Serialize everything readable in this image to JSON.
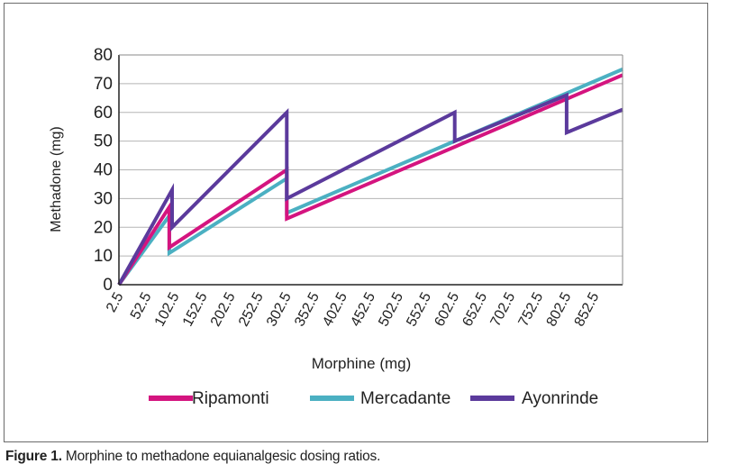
{
  "chart_data": {
    "type": "line",
    "title": "",
    "xlabel": "Morphine (mg)",
    "ylabel": "Methadone (mg)",
    "ylim": [
      0,
      80
    ],
    "yticks": [
      "0",
      "10",
      "20",
      "30",
      "40",
      "50",
      "60",
      "70",
      "80"
    ],
    "xlim": [
      2.5,
      902.5
    ],
    "xticks": [
      "2.5",
      "52.5",
      "102.5",
      "152.5",
      "202.5",
      "252.5",
      "302.5",
      "352.5",
      "402.5",
      "452.5",
      "502.5",
      "552.5",
      "602.5",
      "652.5",
      "702.5",
      "752.5",
      "802.5",
      "852.5"
    ],
    "grid": true,
    "legend_position": "bottom",
    "series": [
      {
        "name": "Ripamonti",
        "color": "#d4147f",
        "points": [
          [
            2.5,
            0
          ],
          [
            92.5,
            27
          ],
          [
            92.5,
            13
          ],
          [
            302.5,
            40
          ],
          [
            302.5,
            23
          ],
          [
            902.5,
            73
          ]
        ]
      },
      {
        "name": "Mercadante",
        "color": "#4bb0c2",
        "points": [
          [
            2.5,
            0
          ],
          [
            92.5,
            24
          ],
          [
            92.5,
            11
          ],
          [
            302.5,
            37
          ],
          [
            302.5,
            25
          ],
          [
            602.5,
            50
          ],
          [
            902.5,
            75
          ]
        ]
      },
      {
        "name": "Ayonrinde",
        "color": "#5b3a9c",
        "points": [
          [
            2.5,
            0
          ],
          [
            97.5,
            33
          ],
          [
            97.5,
            20
          ],
          [
            302.5,
            60
          ],
          [
            302.5,
            30
          ],
          [
            602.5,
            60
          ],
          [
            602.5,
            50
          ],
          [
            802.5,
            66
          ],
          [
            802.5,
            53
          ],
          [
            902.5,
            61
          ]
        ]
      }
    ]
  },
  "caption": {
    "label": "Figure 1.",
    "text": " Morphine to methadone equianalgesic dosing ratios."
  }
}
